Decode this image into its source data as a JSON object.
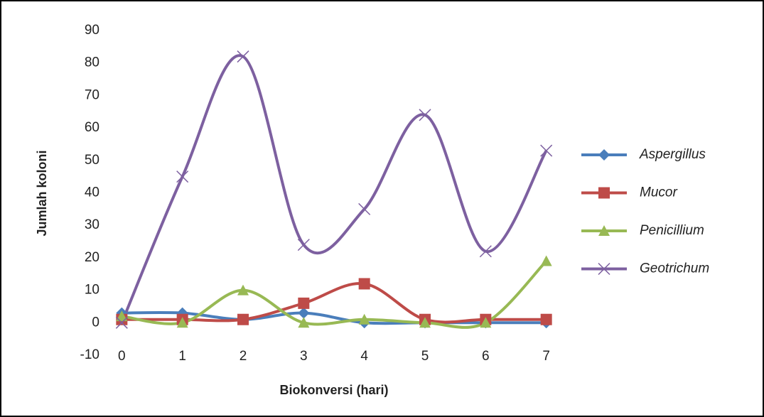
{
  "chart_data": {
    "type": "line",
    "x_label": "Biokonversi (hari)",
    "y_label": "Jumlah koloni",
    "x": [
      0,
      1,
      2,
      3,
      4,
      5,
      6,
      7
    ],
    "xlim": [
      -0.25,
      7.25
    ],
    "xticks": [
      0,
      1,
      2,
      3,
      4,
      5,
      6,
      7
    ],
    "ylim": [
      -10,
      90
    ],
    "yticks": [
      -10,
      0,
      10,
      20,
      30,
      40,
      50,
      60,
      70,
      80,
      90
    ],
    "smooth": true,
    "legend": "right",
    "series": [
      {
        "name": "Aspergillus",
        "color": "#4a7ebb",
        "marker": "diamond",
        "values": [
          3,
          3,
          1,
          3,
          0,
          0,
          0,
          0
        ]
      },
      {
        "name": "Mucor",
        "color": "#be4b48",
        "marker": "square",
        "values": [
          1,
          1,
          1,
          6,
          12,
          1,
          1,
          1
        ]
      },
      {
        "name": "Penicillium",
        "color": "#98b954",
        "marker": "triangle",
        "values": [
          2,
          0,
          10,
          0,
          1,
          0,
          0,
          19
        ]
      },
      {
        "name": "Geotrichum",
        "color": "#7d60a0",
        "marker": "x",
        "values": [
          0,
          45,
          82,
          24,
          35,
          64,
          22,
          53
        ]
      }
    ]
  }
}
